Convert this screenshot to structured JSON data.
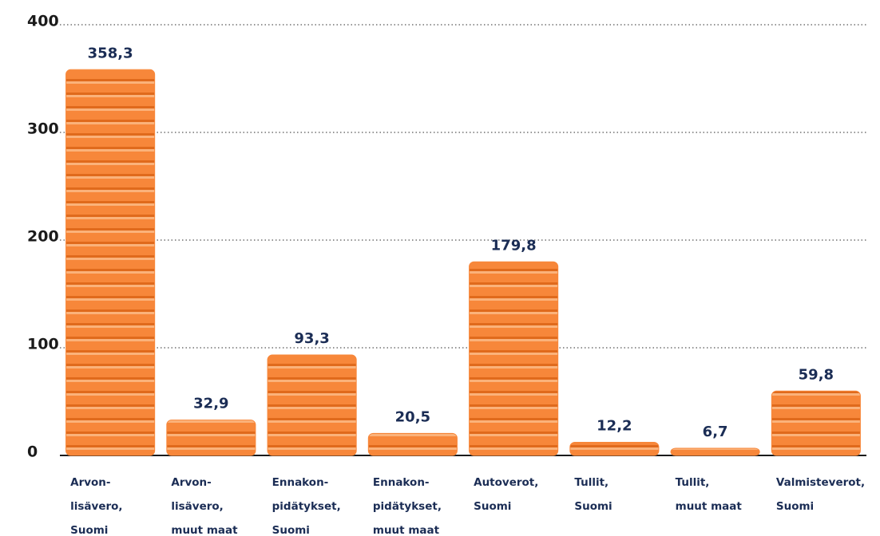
{
  "chart_data": {
    "type": "bar",
    "categories": [
      [
        "Arvon-",
        "lisävero,",
        "Suomi"
      ],
      [
        "Arvon-",
        "lisävero,",
        "muut maat"
      ],
      [
        "Ennakon-",
        "pidätykset,",
        "Suomi"
      ],
      [
        "Ennakon-",
        "pidätykset,",
        "muut maat"
      ],
      [
        "Autoverot,",
        "Suomi"
      ],
      [
        "Tullit,",
        "Suomi"
      ],
      [
        "Tullit,",
        "muut maat"
      ],
      [
        "Valmisteverot,",
        "Suomi"
      ]
    ],
    "values": [
      358.3,
      32.9,
      93.3,
      20.5,
      179.8,
      12.2,
      6.7,
      59.8
    ],
    "value_labels": [
      "358,3",
      "32,9",
      "93,3",
      "20,5",
      "179,8",
      "12,2",
      "6,7",
      "59,8"
    ],
    "color": "#f7873a",
    "ylim": [
      0,
      400
    ],
    "yticks": [
      0,
      100,
      200,
      300,
      400
    ],
    "grid": true
  }
}
